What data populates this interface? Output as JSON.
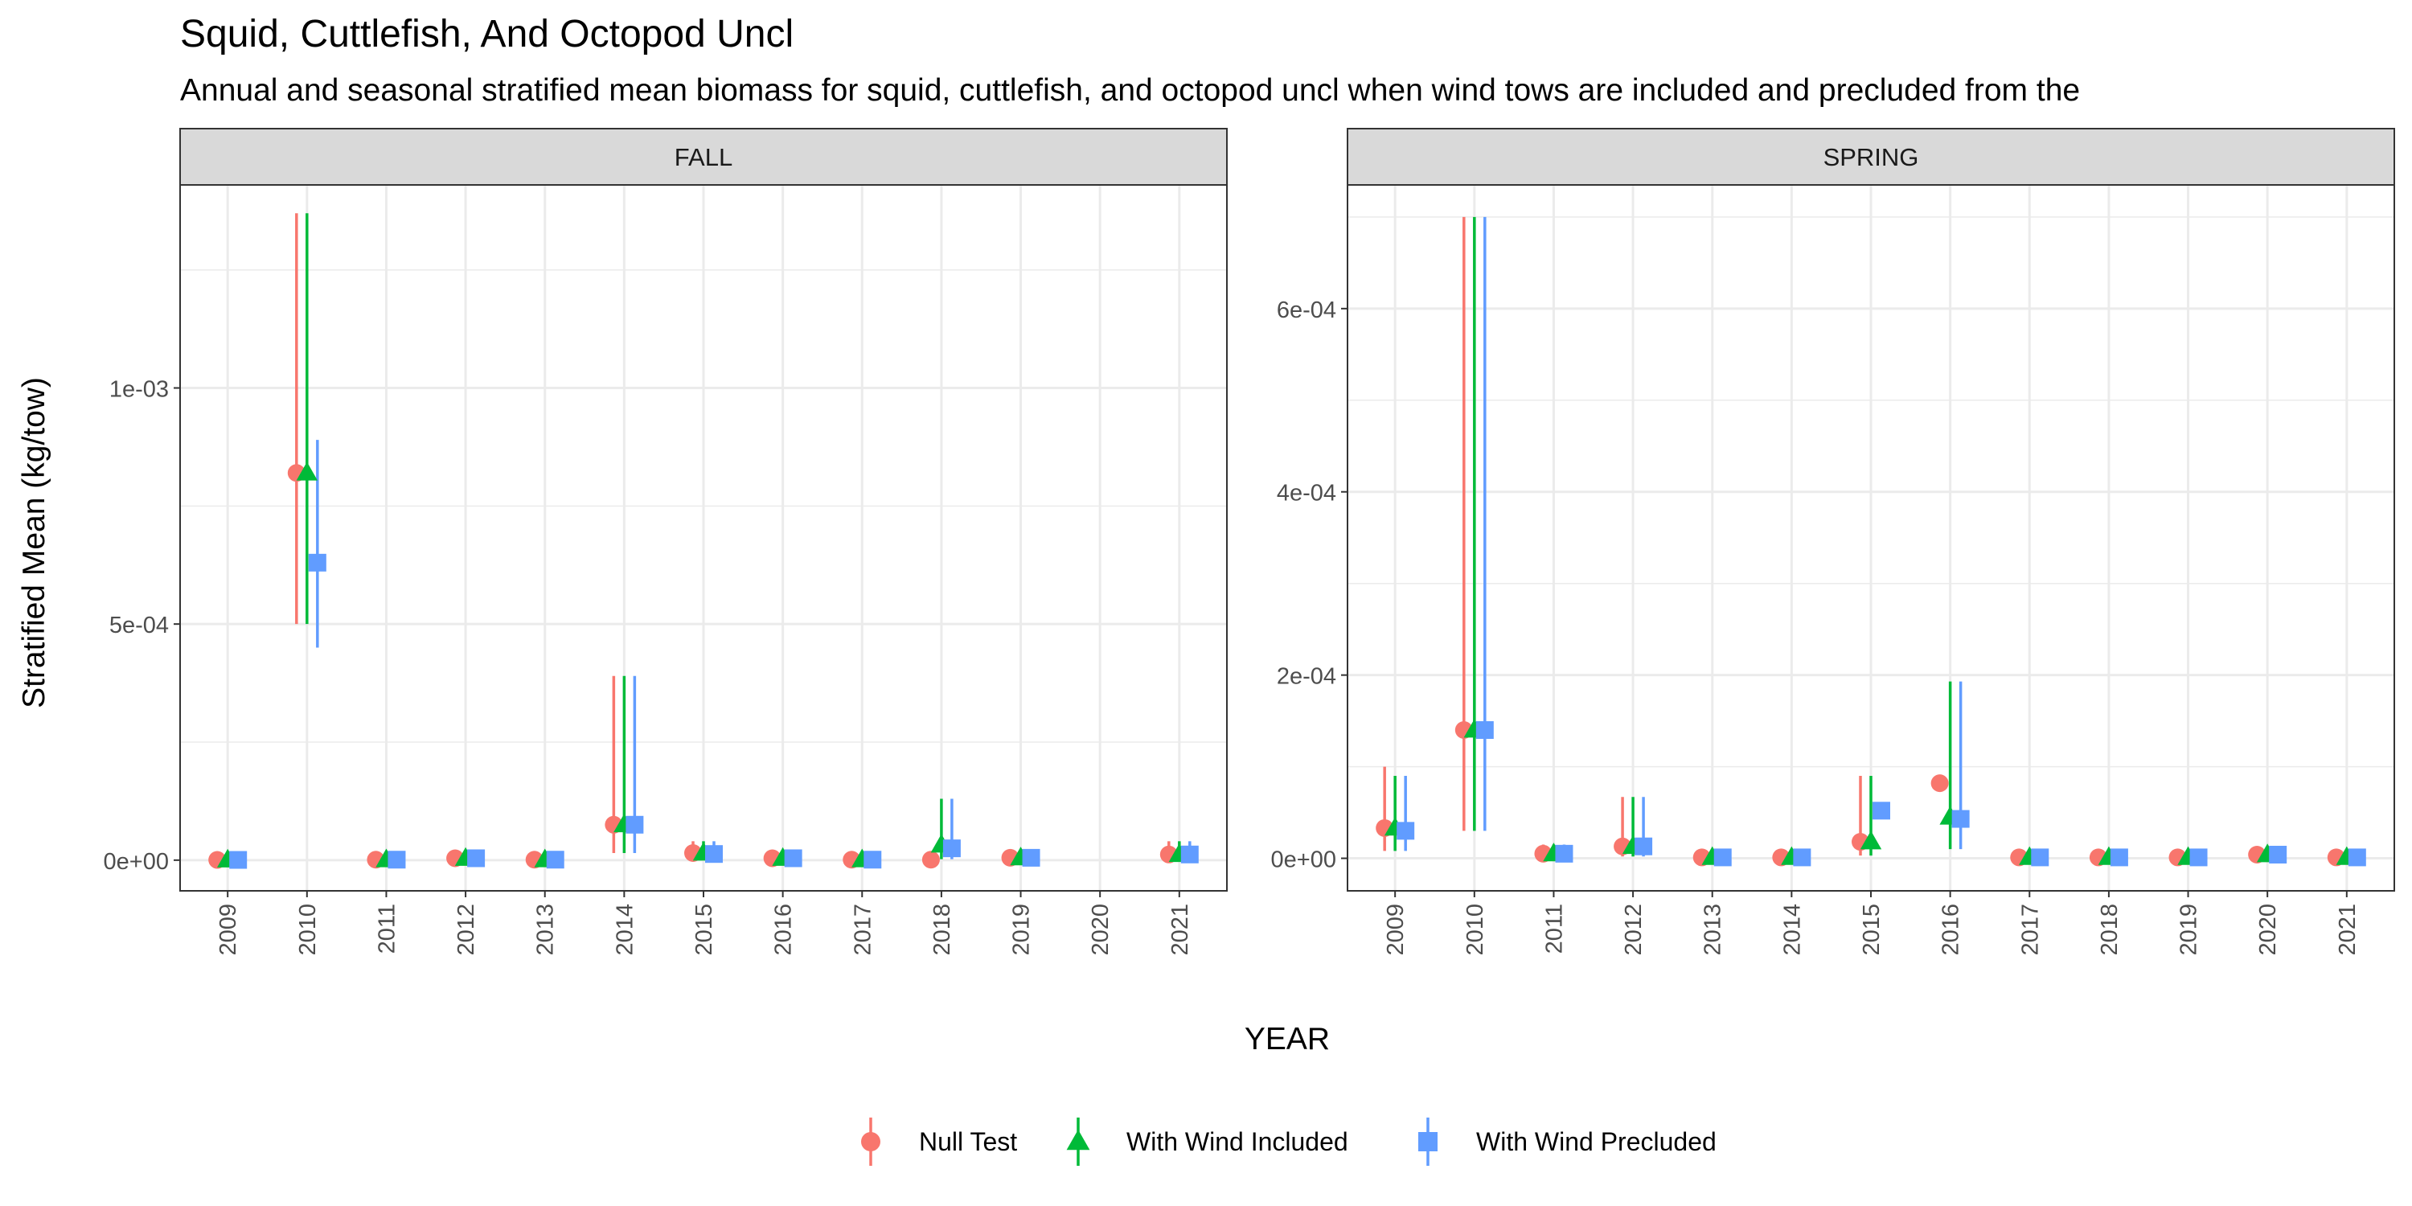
{
  "chart_data": {
    "type": "scatter",
    "title": "Squid, Cuttlefish, And Octopod Uncl",
    "subtitle": "Annual and seasonal stratified mean biomass for squid, cuttlefish, and octopod uncl when wind tows are included and precluded from the",
    "xlabel": "YEAR",
    "ylabel": "Stratified Mean (kg/tow)",
    "grid": true,
    "legend_position": "bottom",
    "x": [
      2009,
      2010,
      2011,
      2012,
      2013,
      2014,
      2015,
      2016,
      2017,
      2018,
      2019,
      2020,
      2021
    ],
    "series_meta": [
      {
        "name": "Null Test",
        "color": "#F8766D",
        "shape": "circle"
      },
      {
        "name": "With Wind Included",
        "color": "#00BA38",
        "shape": "triangle"
      },
      {
        "name": "With Wind Precluded",
        "color": "#619CFF",
        "shape": "square"
      }
    ],
    "panels": [
      {
        "strip": "FALL",
        "ylim": [
          -6.5e-05,
          0.00143
        ],
        "yticks": [
          0,
          0.0005,
          0.001
        ],
        "ytick_labels": [
          "0e+00",
          "5e-04",
          "1e-03"
        ],
        "series": [
          {
            "name": "Null Test",
            "mean": [
              5e-07,
              0.00082,
              1e-06,
              4e-06,
              1e-06,
              7.5e-05,
              1.5e-05,
              4e-06,
              1e-06,
              1e-06,
              5e-06,
              null,
              1.2e-05
            ],
            "lower": [
              5e-07,
              0.0005,
              1e-06,
              4e-06,
              1e-06,
              1.5e-05,
              5e-06,
              4e-06,
              1e-06,
              1e-06,
              5e-06,
              null,
              4e-06
            ],
            "upper": [
              5e-07,
              0.00137,
              1.5e-05,
              1.5e-05,
              1e-06,
              0.00039,
              4e-05,
              1.2e-05,
              1e-06,
              1e-06,
              1.4e-05,
              null,
              4e-05
            ]
          },
          {
            "name": "With Wind Included",
            "mean": [
              5e-07,
              0.00082,
              1e-06,
              4e-06,
              1e-06,
              7.5e-05,
              1.5e-05,
              4e-06,
              1e-06,
              3.2e-05,
              5e-06,
              null,
              1.2e-05
            ],
            "lower": [
              5e-07,
              0.0005,
              1e-06,
              4e-06,
              1e-06,
              1.5e-05,
              5e-06,
              4e-06,
              1e-06,
              2e-06,
              5e-06,
              null,
              4e-06
            ],
            "upper": [
              5e-07,
              0.00137,
              1.5e-05,
              1.5e-05,
              1e-06,
              0.00039,
              4e-05,
              1.2e-05,
              1e-06,
              0.00013,
              1.4e-05,
              null,
              4e-05
            ]
          },
          {
            "name": "With Wind Precluded",
            "mean": [
              5e-07,
              0.00063,
              1e-06,
              4e-06,
              1e-06,
              7.5e-05,
              1.3e-05,
              4e-06,
              1e-06,
              2.5e-05,
              5e-06,
              null,
              1.2e-05
            ],
            "lower": [
              5e-07,
              0.00045,
              1e-06,
              4e-06,
              1e-06,
              1.5e-05,
              5e-06,
              4e-06,
              1e-06,
              2e-06,
              5e-06,
              null,
              4e-06
            ],
            "upper": [
              5e-07,
              0.00089,
              1.5e-05,
              1.5e-05,
              1e-06,
              0.00039,
              4e-05,
              1.2e-05,
              1e-06,
              0.00013,
              1.4e-05,
              null,
              4e-05
            ]
          }
        ]
      },
      {
        "strip": "SPRING",
        "ylim": [
          -3.55e-05,
          0.000735
        ],
        "yticks": [
          0,
          0.0002,
          0.0004,
          0.0006
        ],
        "ytick_labels": [
          "0e+00",
          "2e-04",
          "4e-04",
          "6e-04"
        ],
        "series": [
          {
            "name": "Null Test",
            "mean": [
              3.3e-05,
              0.00014,
              5e-06,
              1.3e-05,
              1e-06,
              1e-06,
              1.8e-05,
              8.2e-05,
              1e-06,
              1e-06,
              1e-06,
              4e-06,
              1e-06
            ],
            "lower": [
              8e-06,
              3e-05,
              1e-06,
              2e-06,
              1e-06,
              1e-06,
              3e-06,
              8.2e-05,
              1e-06,
              1e-06,
              1e-06,
              1e-06,
              1e-06
            ],
            "upper": [
              0.0001,
              0.0007,
              1.5e-05,
              6.7e-05,
              1e-06,
              1e-06,
              9e-05,
              8.2e-05,
              1e-06,
              1e-06,
              1e-06,
              8e-06,
              1e-06
            ]
          },
          {
            "name": "With Wind Included",
            "mean": [
              3.3e-05,
              0.00014,
              5e-06,
              1.3e-05,
              1e-06,
              1e-06,
              1.8e-05,
              4.5e-05,
              1e-06,
              1e-06,
              1e-06,
              4e-06,
              1e-06
            ],
            "lower": [
              8e-06,
              3e-05,
              1e-06,
              2e-06,
              1e-06,
              1e-06,
              3e-06,
              1e-05,
              1e-06,
              1e-06,
              1e-06,
              1e-06,
              1e-06
            ],
            "upper": [
              9e-05,
              0.0007,
              1.5e-05,
              6.7e-05,
              1e-06,
              1e-06,
              9e-05,
              0.000193,
              1e-06,
              1e-06,
              1e-06,
              8e-06,
              1e-06
            ]
          },
          {
            "name": "With Wind Precluded",
            "mean": [
              3e-05,
              0.00014,
              5e-06,
              1.3e-05,
              1e-06,
              1e-06,
              5.2e-05,
              4.3e-05,
              1e-06,
              1e-06,
              1e-06,
              4e-06,
              1e-06
            ],
            "lower": [
              8e-06,
              3e-05,
              1e-06,
              2e-06,
              1e-06,
              1e-06,
              5.2e-05,
              1e-05,
              1e-06,
              1e-06,
              1e-06,
              1e-06,
              1e-06
            ],
            "upper": [
              9e-05,
              0.0007,
              1.5e-05,
              6.7e-05,
              1e-06,
              1e-06,
              5.2e-05,
              0.000193,
              1e-06,
              1e-06,
              1e-06,
              8e-06,
              1e-06
            ]
          }
        ]
      }
    ]
  }
}
